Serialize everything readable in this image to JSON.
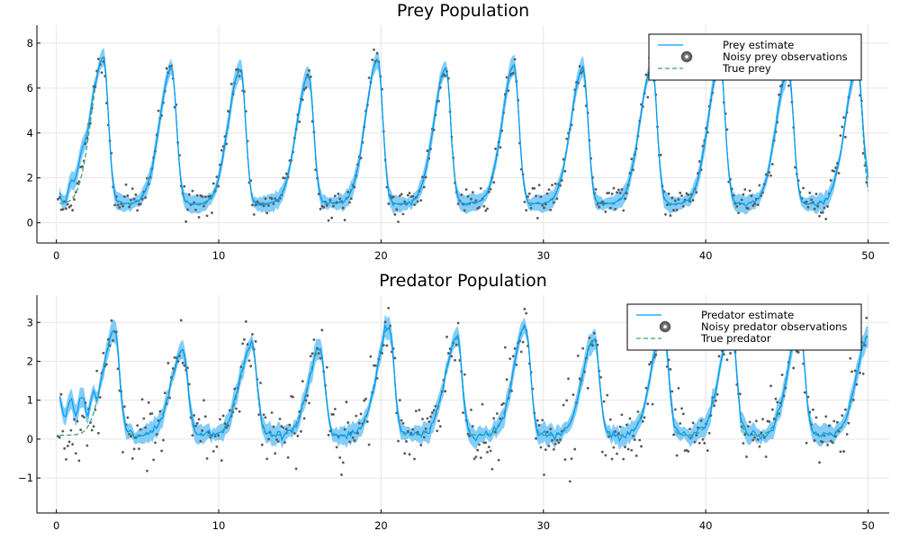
{
  "chart_data": [
    {
      "type": "line",
      "title": "Prey Population",
      "xlim": [
        -1.2,
        51.3
      ],
      "ylim": [
        -0.9,
        8.8
      ],
      "xticks": [
        0,
        10,
        20,
        30,
        40,
        50
      ],
      "yticks": [
        0,
        2,
        4,
        6,
        8
      ],
      "xtick_labels": [
        "0",
        "10",
        "20",
        "30",
        "40",
        "50"
      ],
      "ytick_labels": [
        "0",
        "2",
        "4",
        "6",
        "8"
      ],
      "grid": true,
      "legend_position": "top-right",
      "period": 4.22,
      "peaks": [
        2.9,
        7.1,
        11.35,
        15.55,
        19.8,
        24.0,
        28.2,
        32.45,
        36.7,
        40.9,
        45.1,
        49.35
      ],
      "peak_values": [
        7.4,
        6.9,
        6.9,
        6.6,
        7.3,
        6.9,
        7.0,
        6.9,
        7.0,
        7.1,
        6.9,
        7.0
      ],
      "trough_value": 0.85,
      "start_value": 0.9,
      "end_value": 2.0,
      "band_halfwidth": 0.3,
      "noise_sd": 0.35,
      "n_points": 500,
      "legend": [
        {
          "label": "Prey estimate",
          "color": "#009af9",
          "style": "solid"
        },
        {
          "label": "Noisy prey observations",
          "color": "#5f5f5f",
          "style": "marker"
        },
        {
          "label": "True prey",
          "color": "#3ba272",
          "style": "dashed"
        }
      ]
    },
    {
      "type": "line",
      "title": "Predator Population",
      "xlim": [
        -1.2,
        51.3
      ],
      "ylim": [
        -1.9,
        3.7
      ],
      "xticks": [
        0,
        10,
        20,
        30,
        40,
        50
      ],
      "yticks": [
        -1,
        0,
        1,
        2,
        3
      ],
      "xtick_labels": [
        "0",
        "10",
        "20",
        "30",
        "40",
        "50"
      ],
      "ytick_labels": [
        "−1",
        "0",
        "1",
        "2",
        "3"
      ],
      "grid": true,
      "legend_position": "top-right",
      "period": 4.22,
      "peaks": [
        3.6,
        7.8,
        12.05,
        16.25,
        20.5,
        24.7,
        28.9,
        33.15,
        37.4,
        41.6,
        45.8,
        50.05
      ],
      "peak_values": [
        2.8,
        2.3,
        2.4,
        2.3,
        2.9,
        2.6,
        2.9,
        2.6,
        2.9,
        2.9,
        2.9,
        2.7
      ],
      "trough_value": 0.1,
      "start_value": 0.8,
      "band_halfwidth": 0.2,
      "noise_sd": 0.45,
      "n_points": 500,
      "legend": [
        {
          "label": "Predator estimate",
          "color": "#009af9",
          "style": "solid"
        },
        {
          "label": "Noisy predator observations",
          "color": "#5f5f5f",
          "style": "marker"
        },
        {
          "label": "True predator",
          "color": "#3ba272",
          "style": "dashed"
        }
      ]
    }
  ],
  "colors": {
    "estimate": "#009af9",
    "band": "#5bbcf5",
    "observations": "#5a5a5a",
    "truth": "#3ba272"
  }
}
